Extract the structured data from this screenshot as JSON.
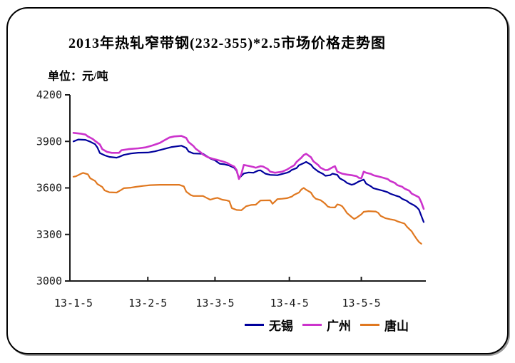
{
  "header": {
    "title": "2013年热轧窄带钢(232-355)*2.5市场价格走势图",
    "unit_label": "单位：元/吨"
  },
  "chart_data": {
    "type": "line",
    "title": "2013年热轧窄带钢(232-355)*2.5市场价格走势图",
    "ylabel": "元/吨",
    "grid": false,
    "legend_position": "bottom",
    "y_axis": {
      "min": 3000,
      "max": 4200,
      "tick_interval": 300,
      "tick_labels": [
        "4200",
        "3900",
        "3600",
        "3300",
        "3000"
      ]
    },
    "x_axis": {
      "tick_labels": [
        "13-1-5",
        "13-2-5",
        "13-3-5",
        "13-4-5",
        "13-5-5"
      ],
      "tick_days": [
        0,
        31,
        59,
        90,
        120
      ],
      "range_days": [
        -1.5,
        146
      ]
    },
    "series": [
      {
        "name": "无锡",
        "color": "#00009c",
        "points": [
          [
            0,
            3900
          ],
          [
            2,
            3912
          ],
          [
            5,
            3910
          ],
          [
            7,
            3898
          ],
          [
            9,
            3882
          ],
          [
            10,
            3860
          ],
          [
            11,
            3825
          ],
          [
            13,
            3810
          ],
          [
            15,
            3800
          ],
          [
            18,
            3795
          ],
          [
            19,
            3800
          ],
          [
            21,
            3813
          ],
          [
            24,
            3822
          ],
          [
            27,
            3827
          ],
          [
            31,
            3828
          ],
          [
            34,
            3836
          ],
          [
            38,
            3852
          ],
          [
            41,
            3864
          ],
          [
            45,
            3872
          ],
          [
            47,
            3858
          ],
          [
            48,
            3835
          ],
          [
            50,
            3822
          ],
          [
            54,
            3820
          ],
          [
            55,
            3810
          ],
          [
            57,
            3790
          ],
          [
            59,
            3778
          ],
          [
            61,
            3756
          ],
          [
            63,
            3752
          ],
          [
            65,
            3744
          ],
          [
            67,
            3730
          ],
          [
            68,
            3710
          ],
          [
            69,
            3662
          ],
          [
            71,
            3693
          ],
          [
            73,
            3700
          ],
          [
            75,
            3698
          ],
          [
            77,
            3712
          ],
          [
            78,
            3713
          ],
          [
            80,
            3692
          ],
          [
            82,
            3684
          ],
          [
            85,
            3682
          ],
          [
            87,
            3690
          ],
          [
            89,
            3698
          ],
          [
            90,
            3704
          ],
          [
            91,
            3716
          ],
          [
            93,
            3728
          ],
          [
            94,
            3746
          ],
          [
            96,
            3760
          ],
          [
            97,
            3768
          ],
          [
            99,
            3750
          ],
          [
            100,
            3730
          ],
          [
            102,
            3706
          ],
          [
            104,
            3690
          ],
          [
            105,
            3678
          ],
          [
            107,
            3682
          ],
          [
            108,
            3692
          ],
          [
            110,
            3684
          ],
          [
            111,
            3662
          ],
          [
            113,
            3645
          ],
          [
            114,
            3632
          ],
          [
            116,
            3620
          ],
          [
            117,
            3625
          ],
          [
            119,
            3642
          ],
          [
            121,
            3654
          ],
          [
            122,
            3628
          ],
          [
            124,
            3610
          ],
          [
            125,
            3598
          ],
          [
            127,
            3590
          ],
          [
            129,
            3582
          ],
          [
            131,
            3572
          ],
          [
            132,
            3563
          ],
          [
            134,
            3552
          ],
          [
            136,
            3542
          ],
          [
            137,
            3530
          ],
          [
            139,
            3516
          ],
          [
            140,
            3504
          ],
          [
            142,
            3488
          ],
          [
            143,
            3477
          ],
          [
            144,
            3460
          ],
          [
            146,
            3380
          ]
        ]
      },
      {
        "name": "广州",
        "color": "#cc33cc",
        "points": [
          [
            0,
            3955
          ],
          [
            3,
            3950
          ],
          [
            5,
            3944
          ],
          [
            6,
            3932
          ],
          [
            8,
            3916
          ],
          [
            9,
            3903
          ],
          [
            11,
            3880
          ],
          [
            12,
            3850
          ],
          [
            14,
            3832
          ],
          [
            16,
            3826
          ],
          [
            19,
            3826
          ],
          [
            20,
            3843
          ],
          [
            23,
            3850
          ],
          [
            27,
            3855
          ],
          [
            30,
            3861
          ],
          [
            33,
            3874
          ],
          [
            36,
            3890
          ],
          [
            38,
            3908
          ],
          [
            40,
            3925
          ],
          [
            42,
            3932
          ],
          [
            45,
            3935
          ],
          [
            47,
            3922
          ],
          [
            48,
            3895
          ],
          [
            50,
            3870
          ],
          [
            51,
            3852
          ],
          [
            53,
            3830
          ],
          [
            54,
            3815
          ],
          [
            56,
            3798
          ],
          [
            58,
            3788
          ],
          [
            60,
            3780
          ],
          [
            62,
            3772
          ],
          [
            64,
            3762
          ],
          [
            65,
            3752
          ],
          [
            67,
            3738
          ],
          [
            68,
            3715
          ],
          [
            69,
            3658
          ],
          [
            70,
            3690
          ],
          [
            71,
            3748
          ],
          [
            73,
            3742
          ],
          [
            75,
            3735
          ],
          [
            76,
            3730
          ],
          [
            78,
            3740
          ],
          [
            79,
            3738
          ],
          [
            81,
            3722
          ],
          [
            82,
            3705
          ],
          [
            84,
            3698
          ],
          [
            86,
            3702
          ],
          [
            87,
            3705
          ],
          [
            89,
            3718
          ],
          [
            90,
            3728
          ],
          [
            92,
            3746
          ],
          [
            93,
            3768
          ],
          [
            95,
            3795
          ],
          [
            96,
            3812
          ],
          [
            97,
            3820
          ],
          [
            99,
            3798
          ],
          [
            100,
            3772
          ],
          [
            102,
            3748
          ],
          [
            103,
            3730
          ],
          [
            105,
            3715
          ],
          [
            106,
            3716
          ],
          [
            108,
            3733
          ],
          [
            109,
            3740
          ],
          [
            110,
            3705
          ],
          [
            112,
            3692
          ],
          [
            114,
            3686
          ],
          [
            116,
            3682
          ],
          [
            118,
            3676
          ],
          [
            119,
            3665
          ],
          [
            120,
            3662
          ],
          [
            121,
            3705
          ],
          [
            122,
            3698
          ],
          [
            124,
            3690
          ],
          [
            125,
            3682
          ],
          [
            127,
            3674
          ],
          [
            129,
            3666
          ],
          [
            131,
            3657
          ],
          [
            132,
            3645
          ],
          [
            134,
            3632
          ],
          [
            135,
            3618
          ],
          [
            137,
            3608
          ],
          [
            138,
            3596
          ],
          [
            140,
            3582
          ],
          [
            141,
            3563
          ],
          [
            143,
            3548
          ],
          [
            144,
            3540
          ],
          [
            145,
            3508
          ],
          [
            146,
            3465
          ]
        ]
      },
      {
        "name": "唐山",
        "color": "#e07820",
        "points": [
          [
            0,
            3672
          ],
          [
            1,
            3675
          ],
          [
            3,
            3690
          ],
          [
            4,
            3697
          ],
          [
            6,
            3688
          ],
          [
            7,
            3662
          ],
          [
            9,
            3645
          ],
          [
            10,
            3625
          ],
          [
            12,
            3606
          ],
          [
            13,
            3584
          ],
          [
            15,
            3572
          ],
          [
            18,
            3570
          ],
          [
            20,
            3588
          ],
          [
            21,
            3598
          ],
          [
            24,
            3602
          ],
          [
            26,
            3607
          ],
          [
            29,
            3613
          ],
          [
            32,
            3618
          ],
          [
            36,
            3620
          ],
          [
            44,
            3620
          ],
          [
            46,
            3610
          ],
          [
            47,
            3576
          ],
          [
            49,
            3553
          ],
          [
            50,
            3548
          ],
          [
            54,
            3548
          ],
          [
            56,
            3532
          ],
          [
            57,
            3524
          ],
          [
            59,
            3533
          ],
          [
            60,
            3536
          ],
          [
            62,
            3524
          ],
          [
            64,
            3519
          ],
          [
            65,
            3514
          ],
          [
            66,
            3470
          ],
          [
            68,
            3458
          ],
          [
            70,
            3456
          ],
          [
            72,
            3482
          ],
          [
            74,
            3490
          ],
          [
            76,
            3492
          ],
          [
            78,
            3519
          ],
          [
            82,
            3520
          ],
          [
            83,
            3498
          ],
          [
            84,
            3512
          ],
          [
            85,
            3528
          ],
          [
            87,
            3530
          ],
          [
            89,
            3534
          ],
          [
            91,
            3544
          ],
          [
            92,
            3556
          ],
          [
            94,
            3570
          ],
          [
            95,
            3590
          ],
          [
            96,
            3600
          ],
          [
            97,
            3588
          ],
          [
            99,
            3570
          ],
          [
            100,
            3545
          ],
          [
            101,
            3530
          ],
          [
            103,
            3521
          ],
          [
            104,
            3510
          ],
          [
            105,
            3497
          ],
          [
            106,
            3480
          ],
          [
            107,
            3475
          ],
          [
            109,
            3474
          ],
          [
            110,
            3494
          ],
          [
            111,
            3490
          ],
          [
            112,
            3482
          ],
          [
            113,
            3462
          ],
          [
            114,
            3438
          ],
          [
            116,
            3412
          ],
          [
            117,
            3400
          ],
          [
            118,
            3408
          ],
          [
            120,
            3430
          ],
          [
            121,
            3446
          ],
          [
            123,
            3450
          ],
          [
            126,
            3448
          ],
          [
            127,
            3440
          ],
          [
            128,
            3420
          ],
          [
            130,
            3405
          ],
          [
            132,
            3398
          ],
          [
            134,
            3392
          ],
          [
            135,
            3385
          ],
          [
            136,
            3380
          ],
          [
            138,
            3370
          ],
          [
            139,
            3350
          ],
          [
            141,
            3320
          ],
          [
            142,
            3295
          ],
          [
            143,
            3272
          ],
          [
            144,
            3252
          ],
          [
            145,
            3240
          ]
        ]
      }
    ]
  }
}
